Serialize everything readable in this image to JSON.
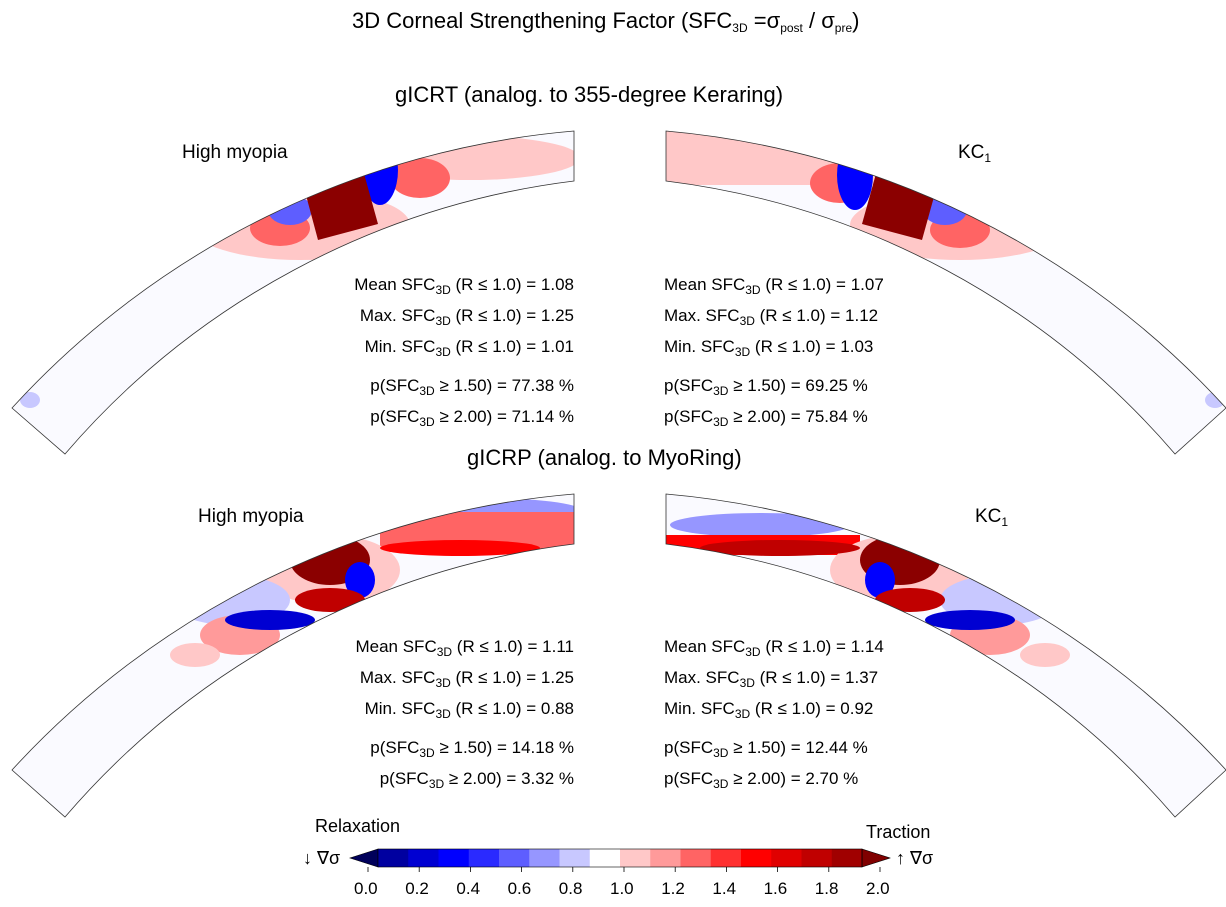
{
  "title": {
    "main": "3D Corneal Strengthening Factor (SFC",
    "sub": "3D",
    "mid": " =σ",
    "post": "post",
    "slash": " / σ",
    "pre": "pre",
    "close": ")"
  },
  "sections": [
    {
      "title": "gICRT (analog. to 355-degree Keraring)"
    },
    {
      "title": "gICRP (analog. to MyoRing)"
    }
  ],
  "panels": [
    {
      "label": "High myopia",
      "label_sub": "",
      "stats": {
        "mean": "1.08",
        "max": "1.25",
        "min": "1.01",
        "p150": "77.38 %",
        "p200": "71.14 %"
      }
    },
    {
      "label": "KC",
      "label_sub": "1",
      "stats": {
        "mean": "1.07",
        "max": "1.12",
        "min": "1.03",
        "p150": "69.25 %",
        "p200": "75.84 %"
      }
    },
    {
      "label": "High myopia",
      "label_sub": "",
      "stats": {
        "mean": "1.11",
        "max": "1.25",
        "min": "0.88",
        "p150": "14.18 %",
        "p200": "3.32 %"
      }
    },
    {
      "label": "KC",
      "label_sub": "1",
      "stats": {
        "mean": "1.14",
        "max": "1.37",
        "min": "0.92",
        "p150": "12.44 %",
        "p200": "2.70 %"
      }
    }
  ],
  "stat_labels": {
    "mean": "Mean SFC",
    "max": "Max. SFC",
    "min": "Min. SFC",
    "sub": "3D",
    "cond": " (R ≤ 1.0) = ",
    "p_open": "p(SFC",
    "ge150": " ≥ 1.50) = ",
    "ge200": " ≥ 2.00) = "
  },
  "colorbar": {
    "left_label": "Relaxation",
    "right_label": "Traction",
    "left_arrow": "↓ ∇σ",
    "right_arrow": "↑ ∇σ",
    "ticks": [
      "0.0",
      "0.2",
      "0.4",
      "0.6",
      "0.8",
      "1.0",
      "1.2",
      "1.4",
      "1.6",
      "1.8",
      "2.0"
    ],
    "colors": [
      "#00005a",
      "#0000a0",
      "#0000d2",
      "#0000ff",
      "#2a2aff",
      "#5e5eff",
      "#9696ff",
      "#c8c8ff",
      "#ffffff",
      "#ffc8c8",
      "#ff9a9a",
      "#ff6464",
      "#ff3030",
      "#ff0000",
      "#e00000",
      "#c00000",
      "#a00000",
      "#800000"
    ]
  },
  "colors": {
    "deep_red": "#8b0000",
    "red": "#ff0000",
    "light_red": "#ffc8c8",
    "blue": "#0000ff",
    "light_blue": "#c8c8ff",
    "background_fill": "#fafaff"
  }
}
